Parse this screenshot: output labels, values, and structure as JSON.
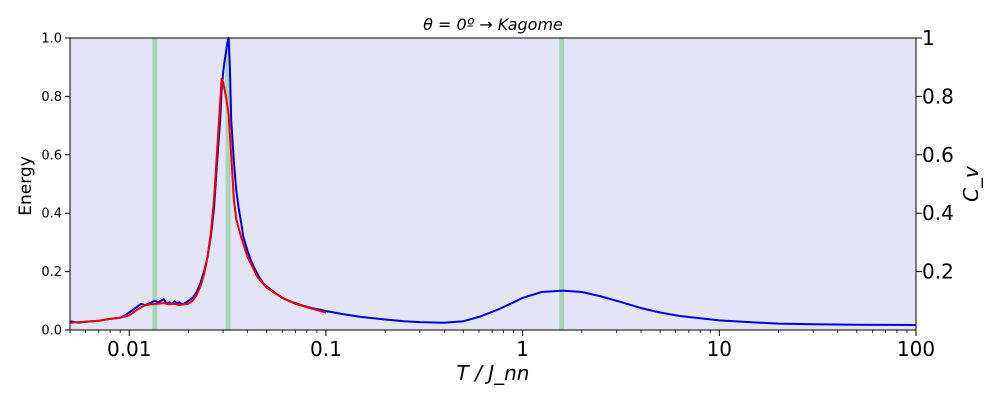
{
  "chart_data": {
    "type": "line",
    "title": "θ = 0º → Kagome",
    "xlabel": "T / J_nn",
    "ylabel_left": "Energy",
    "ylabel_right": "C_v",
    "xscale": "log",
    "xlim": [
      0.005,
      100
    ],
    "ylim_left": [
      0,
      1.0
    ],
    "ylim_right": [
      0.0,
      1.0
    ],
    "grid": false,
    "background_color": "#e4e4f7",
    "x_ticks": [
      {
        "value": 0.01,
        "label": "0.01"
      },
      {
        "value": 0.1,
        "label": "0.1"
      },
      {
        "value": 1,
        "label": "1"
      },
      {
        "value": 10,
        "label": "10"
      },
      {
        "value": 100,
        "label": "100"
      }
    ],
    "y_ticks_left": [
      {
        "value": 0.0,
        "label": "0.0"
      },
      {
        "value": 0.2,
        "label": "0.2"
      },
      {
        "value": 0.4,
        "label": "0.4"
      },
      {
        "value": 0.6,
        "label": "0.6"
      },
      {
        "value": 0.8,
        "label": "0.8"
      },
      {
        "value": 1.0,
        "label": "1.0"
      }
    ],
    "y_ticks_right": [
      {
        "value": 0.2,
        "label": "0.2"
      },
      {
        "value": 0.4,
        "label": "0.4"
      },
      {
        "value": 0.6,
        "label": "0.6"
      },
      {
        "value": 0.8,
        "label": "0.8"
      },
      {
        "value": 1.0,
        "label": "1"
      }
    ],
    "vertical_lines": [
      {
        "x": 0.0135,
        "color": "#a9d3b6"
      },
      {
        "x": 0.0318,
        "color": "#a9d3b6"
      },
      {
        "x": 1.58,
        "color": "#a9d3b6"
      }
    ],
    "series": [
      {
        "color": "#0000dd",
        "axis": "right",
        "x": [
          0.005,
          0.0055,
          0.006,
          0.0065,
          0.007,
          0.0075,
          0.008,
          0.0085,
          0.009,
          0.0095,
          0.01,
          0.0105,
          0.011,
          0.0115,
          0.012,
          0.0125,
          0.013,
          0.0135,
          0.014,
          0.0145,
          0.015,
          0.0155,
          0.016,
          0.0165,
          0.017,
          0.0175,
          0.018,
          0.0185,
          0.019,
          0.0195,
          0.02,
          0.021,
          0.022,
          0.023,
          0.024,
          0.025,
          0.026,
          0.027,
          0.028,
          0.029,
          0.0295,
          0.03,
          0.0305,
          0.031,
          0.0315,
          0.032,
          0.0325,
          0.033,
          0.034,
          0.035,
          0.036,
          0.037,
          0.038,
          0.04,
          0.042,
          0.045,
          0.048,
          0.052,
          0.057,
          0.062,
          0.068,
          0.075,
          0.085,
          0.1,
          0.12,
          0.15,
          0.2,
          0.25,
          0.3,
          0.4,
          0.5,
          0.6,
          0.75,
          0.9,
          1.0,
          1.25,
          1.6,
          2.0,
          2.5,
          3.2,
          4.0,
          5.0,
          6.3,
          8.0,
          10,
          15,
          20,
          30,
          50,
          100
        ],
        "y": [
          0.03,
          0.025,
          0.028,
          0.03,
          0.032,
          0.035,
          0.038,
          0.04,
          0.042,
          0.05,
          0.06,
          0.07,
          0.08,
          0.09,
          0.085,
          0.09,
          0.095,
          0.1,
          0.095,
          0.1,
          0.105,
          0.09,
          0.095,
          0.09,
          0.098,
          0.09,
          0.095,
          0.088,
          0.09,
          0.095,
          0.1,
          0.11,
          0.13,
          0.16,
          0.2,
          0.25,
          0.32,
          0.42,
          0.58,
          0.72,
          0.82,
          0.88,
          0.92,
          0.95,
          0.98,
          1.0,
          0.9,
          0.72,
          0.58,
          0.48,
          0.42,
          0.37,
          0.32,
          0.27,
          0.23,
          0.19,
          0.16,
          0.14,
          0.12,
          0.105,
          0.095,
          0.085,
          0.075,
          0.065,
          0.055,
          0.045,
          0.036,
          0.03,
          0.027,
          0.025,
          0.03,
          0.045,
          0.07,
          0.095,
          0.11,
          0.13,
          0.135,
          0.13,
          0.115,
          0.095,
          0.075,
          0.06,
          0.048,
          0.04,
          0.033,
          0.026,
          0.022,
          0.02,
          0.018,
          0.017
        ]
      },
      {
        "color": "#ee0000",
        "axis": "left",
        "x": [
          0.005,
          0.006,
          0.007,
          0.008,
          0.009,
          0.01,
          0.011,
          0.012,
          0.013,
          0.014,
          0.015,
          0.016,
          0.017,
          0.018,
          0.019,
          0.02,
          0.021,
          0.022,
          0.023,
          0.024,
          0.025,
          0.026,
          0.027,
          0.028,
          0.029,
          0.0295,
          0.03,
          0.031,
          0.032,
          0.033,
          0.034,
          0.035,
          0.037,
          0.04,
          0.045,
          0.05,
          0.06,
          0.07,
          0.08,
          0.09,
          0.1
        ],
        "y": [
          0.025,
          0.028,
          0.032,
          0.038,
          0.042,
          0.05,
          0.07,
          0.085,
          0.088,
          0.09,
          0.092,
          0.088,
          0.09,
          0.085,
          0.088,
          0.09,
          0.1,
          0.12,
          0.15,
          0.19,
          0.25,
          0.33,
          0.45,
          0.62,
          0.78,
          0.86,
          0.85,
          0.8,
          0.74,
          0.6,
          0.45,
          0.38,
          0.32,
          0.25,
          0.18,
          0.145,
          0.11,
          0.09,
          0.078,
          0.068,
          0.06
        ]
      }
    ]
  }
}
